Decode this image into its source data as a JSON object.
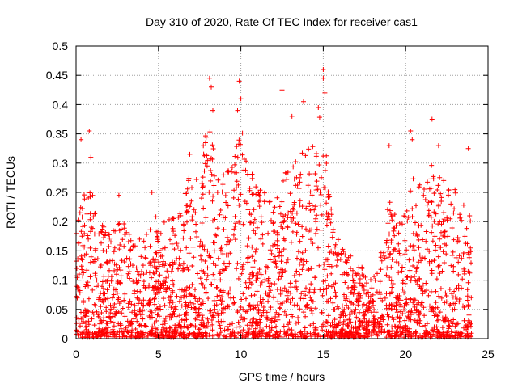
{
  "chart_data": {
    "type": "scatter",
    "title": "Day 310 of 2020, Rate Of TEC Index for receiver cas1",
    "xlabel": "GPS time / hours",
    "ylabel": "ROTI / TECUs",
    "xlim": [
      0,
      25
    ],
    "ylim": [
      0,
      0.5
    ],
    "x_ticks": [
      "0",
      "5",
      "10",
      "15",
      "20",
      "25"
    ],
    "y_ticks": [
      "0",
      "0.05",
      "0.1",
      "0.15",
      "0.2",
      "0.25",
      "0.3",
      "0.35",
      "0.4",
      "0.45",
      "0.5"
    ],
    "grid": true,
    "marker": "+",
    "color": "#ff0000",
    "series": [
      {
        "x_range": [
          0,
          24
        ],
        "envelope": {
          "x": [
            0,
            0.5,
            1,
            1.5,
            2,
            2.5,
            3,
            3.5,
            4,
            4.5,
            5,
            5.5,
            6,
            6.5,
            7,
            7.5,
            8,
            8.5,
            9,
            9.5,
            10,
            10.5,
            11,
            11.5,
            12,
            12.5,
            13,
            13.5,
            14,
            14.5,
            15,
            15.5,
            16,
            16.5,
            17,
            17.5,
            18,
            18.5,
            19,
            19.5,
            20,
            20.5,
            21,
            21.5,
            22,
            22.5,
            23,
            23.5,
            24
          ],
          "ymax": [
            0.2,
            0.25,
            0.26,
            0.2,
            0.18,
            0.22,
            0.2,
            0.16,
            0.18,
            0.19,
            0.22,
            0.2,
            0.22,
            0.24,
            0.3,
            0.29,
            0.38,
            0.3,
            0.28,
            0.3,
            0.38,
            0.3,
            0.26,
            0.26,
            0.22,
            0.3,
            0.28,
            0.32,
            0.34,
            0.36,
            0.4,
            0.22,
            0.16,
            0.15,
            0.13,
            0.12,
            0.1,
            0.15,
            0.24,
            0.2,
            0.22,
            0.28,
            0.26,
            0.3,
            0.28,
            0.27,
            0.26,
            0.24,
            0.22
          ]
        },
        "outliers": [
          [
            0.3,
            0.34
          ],
          [
            0.8,
            0.355
          ],
          [
            0.9,
            0.31
          ],
          [
            2.6,
            0.245
          ],
          [
            4.6,
            0.25
          ],
          [
            6.9,
            0.315
          ],
          [
            8.1,
            0.445
          ],
          [
            8.2,
            0.43
          ],
          [
            8.3,
            0.39
          ],
          [
            9.9,
            0.44
          ],
          [
            10.0,
            0.41
          ],
          [
            9.8,
            0.39
          ],
          [
            12.5,
            0.425
          ],
          [
            13.1,
            0.38
          ],
          [
            13.8,
            0.405
          ],
          [
            14.7,
            0.395
          ],
          [
            15.0,
            0.46
          ],
          [
            15.0,
            0.445
          ],
          [
            15.1,
            0.42
          ],
          [
            19.0,
            0.33
          ],
          [
            20.3,
            0.355
          ],
          [
            20.4,
            0.34
          ],
          [
            21.6,
            0.375
          ],
          [
            22.0,
            0.33
          ],
          [
            23.8,
            0.325
          ]
        ]
      }
    ]
  }
}
